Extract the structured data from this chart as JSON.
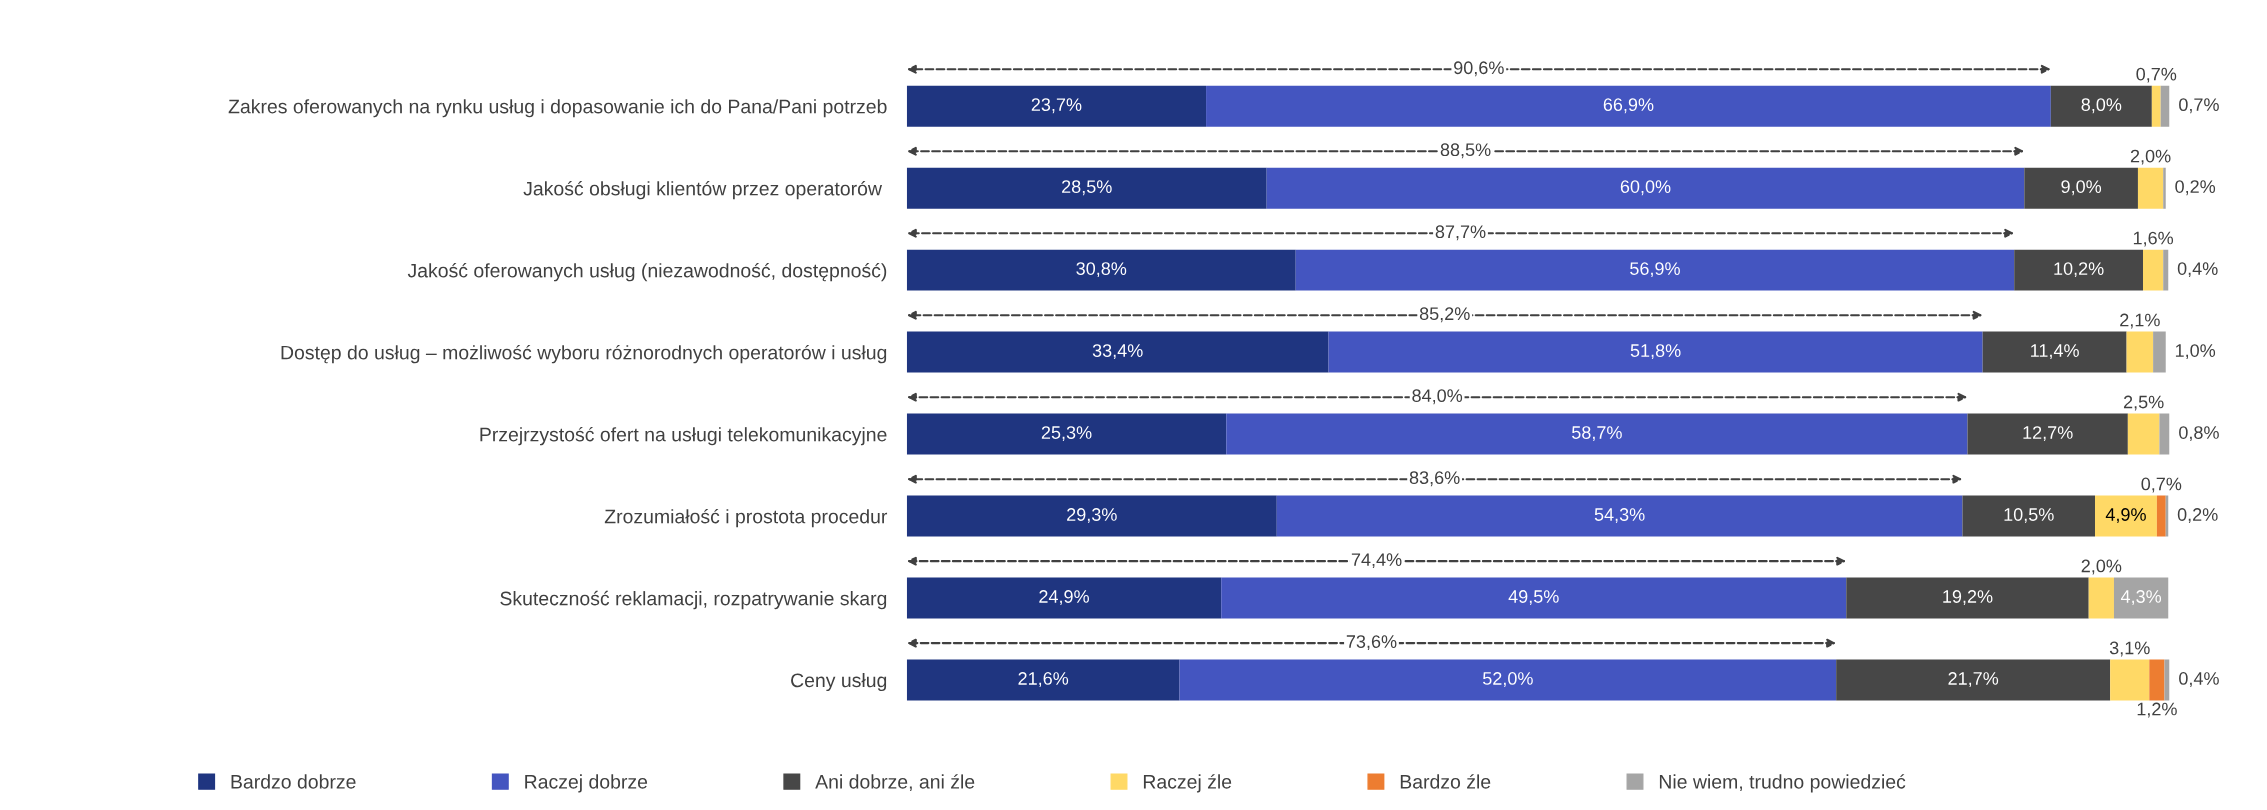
{
  "chart_data": {
    "type": "bar",
    "orientation": "horizontal",
    "stacked": true,
    "xlim": [
      0,
      100
    ],
    "tick_labels": "y",
    "grid": false,
    "legend": "bottom",
    "categories": [
      "Zakres oferowanych na rynku usług i dopasowanie ich do Pana/Pani potrzeb",
      "Jakość obsługi klientów przez operatorów ",
      "Jakość oferowanych usług (niezawodność, dostępność)",
      "Dostęp do usług – możliwość wyboru różnorodnych operatorów i usług",
      "Przejrzystość ofert na usługi telekomunikacyjne",
      "Zrozumiałość i prostota procedur",
      "Skuteczność reklamacji, rozpatrywanie skarg",
      "Ceny usług"
    ],
    "series": [
      {
        "name": "Bardzo dobrze",
        "color": "#1f3580",
        "values": [
          23.7,
          28.5,
          30.8,
          33.4,
          25.3,
          29.3,
          24.9,
          21.6
        ],
        "value_labels": [
          "23,7%",
          "28,5%",
          "30,8%",
          "33,4%",
          "25,3%",
          "29,3%",
          "24,9%",
          "21,6%"
        ]
      },
      {
        "name": "Raczej dobrze",
        "color": "#4455c0",
        "values": [
          66.9,
          60.0,
          56.9,
          51.8,
          58.7,
          54.3,
          49.5,
          52.0
        ],
        "value_labels": [
          "66,9%",
          "60,0%",
          "56,9%",
          "51,8%",
          "58,7%",
          "54,3%",
          "49,5%",
          "52,0%"
        ]
      },
      {
        "name": "Ani dobrze, ani źle",
        "color": "#474747",
        "values": [
          8.0,
          9.0,
          10.2,
          11.4,
          12.7,
          10.5,
          19.2,
          21.7
        ],
        "value_labels": [
          "8,0%",
          "9,0%",
          "10,2%",
          "11,4%",
          "12,7%",
          "10,5%",
          "19,2%",
          "21,7%"
        ]
      },
      {
        "name": "Raczej źle",
        "color": "#ffd966",
        "values": [
          0.7,
          2.0,
          1.6,
          2.1,
          2.5,
          4.9,
          2.0,
          3.1
        ],
        "value_labels": [
          "0,7%",
          "2,0%",
          "1,6%",
          "2,1%",
          "2,5%",
          "4,9%",
          "2,0%",
          "3,1%"
        ]
      },
      {
        "name": "Bardzo źle",
        "color": "#ed7d31",
        "values": [
          null,
          null,
          null,
          null,
          null,
          0.7,
          null,
          1.2
        ],
        "value_labels": [
          null,
          null,
          null,
          null,
          null,
          "0,7%",
          null,
          "1,2%"
        ]
      },
      {
        "name": "Nie wiem, trudno powiedzieć",
        "color": "#a5a5a5",
        "values": [
          0.7,
          0.2,
          0.4,
          1.0,
          0.8,
          0.2,
          4.3,
          0.4
        ],
        "value_labels": [
          "0,7%",
          "0,2%",
          "0,4%",
          "1,0%",
          "0,8%",
          "0,2%",
          "4,3%",
          "0,4%"
        ]
      }
    ],
    "annotations": [
      "90,6%",
      "88,5%",
      "87,7%",
      "85,2%",
      "84,0%",
      "83,6%",
      "74,4%",
      "73,6%"
    ]
  }
}
